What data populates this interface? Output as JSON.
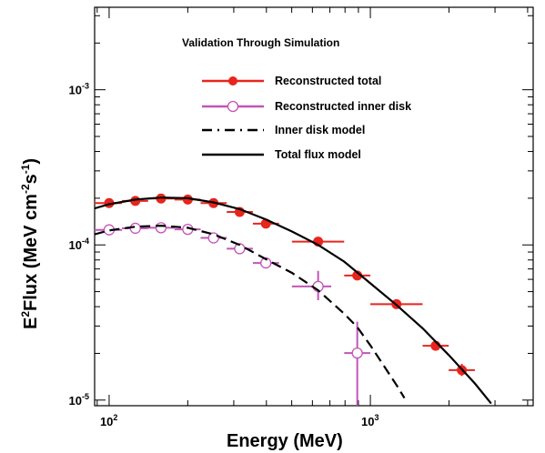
{
  "chart_data": {
    "type": "scatter",
    "title": "Validation Through Simulation",
    "xlabel": "Energy (MeV)",
    "ylabel": {
      "prefix": "E",
      "sup1": "2",
      "mid": "Flux (MeV cm",
      "sup2": "-2",
      "mid2": "s",
      "sup3": "-1",
      "suffix": ")"
    },
    "x_scale": "log",
    "y_scale": "log",
    "xlim": [
      88,
      4200
    ],
    "ylim": [
      9.2e-06,
      0.0034
    ],
    "x_ticks": [
      {
        "value": 100,
        "base": "10",
        "exp": "2"
      },
      {
        "value": 1000,
        "base": "10",
        "exp": "3"
      }
    ],
    "y_ticks": [
      {
        "value": 1e-05,
        "base": "10",
        "exp": "-5"
      },
      {
        "value": 0.0001,
        "base": "10",
        "exp": "-4"
      },
      {
        "value": 0.001,
        "base": "10",
        "exp": "-3"
      }
    ],
    "legend_position": "top-right",
    "series": [
      {
        "name": "Reconstructed total",
        "color": "#e8251d",
        "marker": "filled-circle",
        "points": [
          {
            "x": 100,
            "y": 0.000186,
            "xlo": 88,
            "xhi": 112
          },
          {
            "x": 126,
            "y": 0.000192,
            "xlo": 112,
            "xhi": 141
          },
          {
            "x": 158,
            "y": 0.000199,
            "xlo": 141,
            "xhi": 178
          },
          {
            "x": 200,
            "y": 0.000196,
            "xlo": 178,
            "xhi": 224
          },
          {
            "x": 251,
            "y": 0.000186,
            "xlo": 224,
            "xhi": 282
          },
          {
            "x": 316,
            "y": 0.000163,
            "xlo": 282,
            "xhi": 355
          },
          {
            "x": 398,
            "y": 0.000137,
            "xlo": 355,
            "xhi": 447
          },
          {
            "x": 631,
            "y": 0.000105,
            "xlo": 501,
            "xhi": 794
          },
          {
            "x": 891,
            "y": 6.35e-05,
            "xlo": 794,
            "xhi": 1000
          },
          {
            "x": 1259,
            "y": 4.15e-05,
            "xlo": 1000,
            "xhi": 1585
          },
          {
            "x": 1778,
            "y": 2.24e-05,
            "xlo": 1585,
            "xhi": 1995,
            "ylo": 2.15e-05,
            "yhi": 2.34e-05
          },
          {
            "x": 2239,
            "y": 1.56e-05,
            "xlo": 1995,
            "xhi": 2512,
            "ylo": 1.43e-05,
            "yhi": 1.71e-05
          }
        ]
      },
      {
        "name": "Reconstructed inner disk",
        "color": "#c354b8",
        "marker": "open-circle",
        "points": [
          {
            "x": 100,
            "y": 0.000125,
            "xlo": 88,
            "xhi": 112
          },
          {
            "x": 126,
            "y": 0.000128,
            "xlo": 112,
            "xhi": 141
          },
          {
            "x": 158,
            "y": 0.000129,
            "xlo": 141,
            "xhi": 178
          },
          {
            "x": 200,
            "y": 0.000126,
            "xlo": 178,
            "xhi": 224
          },
          {
            "x": 251,
            "y": 0.000111,
            "xlo": 224,
            "xhi": 282
          },
          {
            "x": 316,
            "y": 9.45e-05,
            "xlo": 282,
            "xhi": 355
          },
          {
            "x": 398,
            "y": 7.65e-05,
            "xlo": 355,
            "xhi": 447
          },
          {
            "x": 631,
            "y": 5.4e-05,
            "xlo": 501,
            "xhi": 708,
            "ylo": 4.4e-05,
            "yhi": 6.8e-05
          },
          {
            "x": 891,
            "y": 2.01e-05,
            "xlo": 794,
            "xhi": 1000,
            "ylo": 9.2e-06,
            "yhi": 3.2e-05
          }
        ]
      },
      {
        "name": "Inner disk  model",
        "color": "#000000",
        "style": "dashed",
        "points": [
          {
            "x": 88,
            "y": 0.000117
          },
          {
            "x": 100,
            "y": 0.000124
          },
          {
            "x": 126,
            "y": 0.000131
          },
          {
            "x": 158,
            "y": 0.000133
          },
          {
            "x": 200,
            "y": 0.000129
          },
          {
            "x": 251,
            "y": 0.000117
          },
          {
            "x": 316,
            "y": 0.0001
          },
          {
            "x": 398,
            "y": 8.1e-05
          },
          {
            "x": 501,
            "y": 6.6e-05
          },
          {
            "x": 631,
            "y": 5.1e-05
          },
          {
            "x": 794,
            "y": 3.6e-05
          },
          {
            "x": 891,
            "y": 2.95e-05
          },
          {
            "x": 1000,
            "y": 2.25e-05
          },
          {
            "x": 1122,
            "y": 1.68e-05
          },
          {
            "x": 1259,
            "y": 1.25e-05
          },
          {
            "x": 1350,
            "y": 1.03e-05
          }
        ]
      },
      {
        "name": "Total flux  model",
        "color": "#000000",
        "style": "solid",
        "points": [
          {
            "x": 88,
            "y": 0.000172
          },
          {
            "x": 100,
            "y": 0.000183
          },
          {
            "x": 126,
            "y": 0.000196
          },
          {
            "x": 158,
            "y": 0.000202
          },
          {
            "x": 200,
            "y": 0.0002
          },
          {
            "x": 251,
            "y": 0.000188
          },
          {
            "x": 316,
            "y": 0.00017
          },
          {
            "x": 398,
            "y": 0.000146
          },
          {
            "x": 501,
            "y": 0.000122
          },
          {
            "x": 631,
            "y": 0.0001
          },
          {
            "x": 794,
            "y": 7.8e-05
          },
          {
            "x": 1000,
            "y": 5.65e-05
          },
          {
            "x": 1259,
            "y": 4.1e-05
          },
          {
            "x": 1585,
            "y": 2.9e-05
          },
          {
            "x": 1995,
            "y": 1.95e-05
          },
          {
            "x": 2512,
            "y": 1.28e-05
          },
          {
            "x": 2900,
            "y": 9.5e-06
          }
        ]
      }
    ]
  }
}
